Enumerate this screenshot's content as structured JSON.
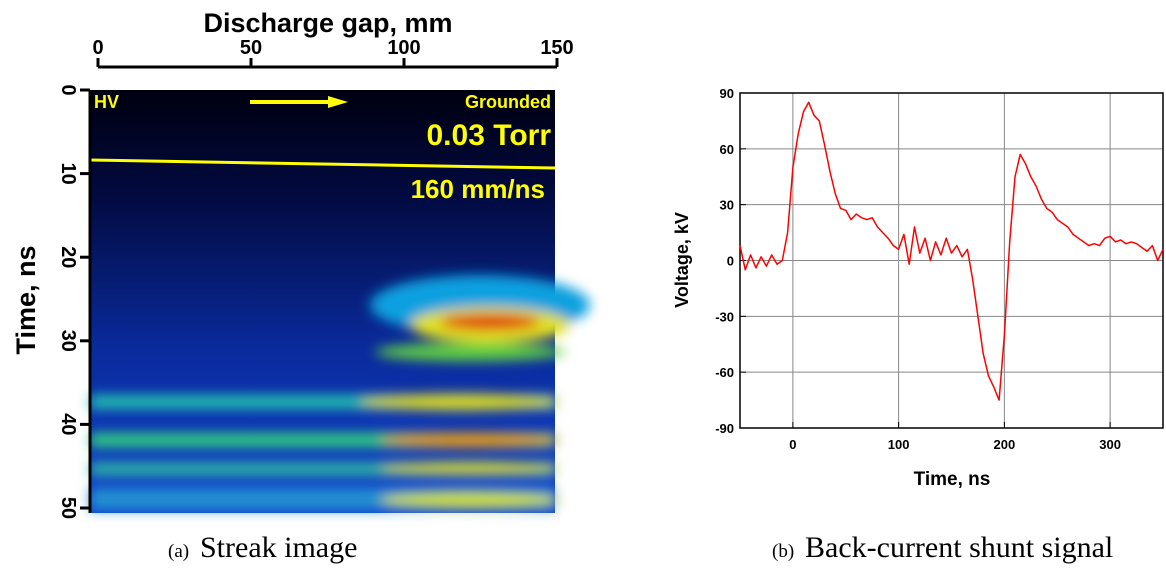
{
  "chart_data": [
    {
      "type": "image",
      "title": "Discharge gap, mm",
      "ylabel": "Time, ns",
      "xlim": [
        0,
        150
      ],
      "xticks": [
        0,
        50,
        100,
        150
      ],
      "ylim": [
        0,
        50
      ],
      "yticks": [
        0,
        10,
        20,
        30,
        40,
        50
      ],
      "annotations": [
        "HV",
        "Grounded",
        "0.03 Torr",
        "160 mm/ns"
      ],
      "caption_label": "(a)",
      "caption": "Streak image"
    },
    {
      "type": "line",
      "xlabel": "Time, ns",
      "ylabel": "Voltage, kV",
      "xlim": [
        -50,
        350
      ],
      "xticks": [
        0,
        100,
        200,
        300
      ],
      "ylim": [
        -90,
        90
      ],
      "yticks": [
        -90,
        -60,
        -30,
        0,
        30,
        60,
        90
      ],
      "grid": true,
      "x": [
        -50,
        -45,
        -40,
        -35,
        -30,
        -25,
        -20,
        -15,
        -10,
        -5,
        0,
        5,
        10,
        15,
        20,
        25,
        30,
        35,
        40,
        45,
        50,
        55,
        60,
        65,
        70,
        75,
        80,
        85,
        90,
        95,
        100,
        105,
        110,
        115,
        120,
        125,
        130,
        135,
        140,
        145,
        150,
        155,
        160,
        165,
        170,
        175,
        180,
        185,
        190,
        195,
        200,
        205,
        210,
        215,
        220,
        225,
        230,
        235,
        240,
        245,
        250,
        255,
        260,
        265,
        270,
        275,
        280,
        285,
        290,
        295,
        300,
        305,
        310,
        315,
        320,
        325,
        330,
        335,
        340,
        345,
        350
      ],
      "series": [
        {
          "color": "#ff0000",
          "values": [
            8,
            -5,
            3,
            -4,
            2,
            -3,
            3,
            -2,
            0,
            15,
            50,
            68,
            80,
            85,
            78,
            75,
            62,
            48,
            36,
            28,
            27,
            22,
            25,
            23,
            22,
            23,
            18,
            15,
            12,
            8,
            6,
            14,
            -2,
            18,
            4,
            12,
            0,
            10,
            3,
            12,
            4,
            8,
            2,
            6,
            -10,
            -30,
            -50,
            -62,
            -68,
            -75,
            -40,
            10,
            45,
            57,
            52,
            45,
            40,
            33,
            28,
            26,
            22,
            20,
            18,
            14,
            12,
            10,
            8,
            9,
            8,
            12,
            13,
            10,
            11,
            9,
            10,
            9,
            7,
            5,
            8,
            0,
            6
          ]
        }
      ],
      "caption_label": "(b)",
      "caption": "Back-current shunt signal"
    }
  ]
}
